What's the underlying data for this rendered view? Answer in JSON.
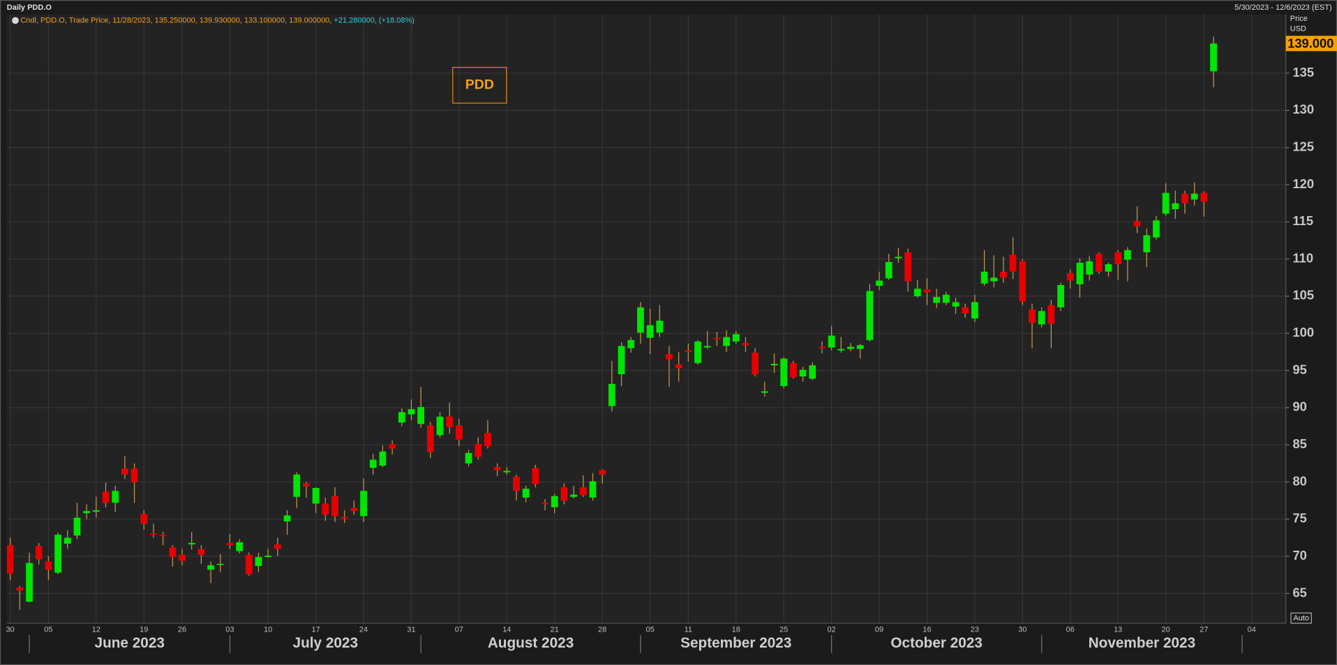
{
  "window_title": "Daily PDD.O",
  "date_range": "5/30/2023 - 12/6/2023 (EST)",
  "legend": {
    "text": "Cndl, PDD.O, Trade Price,  11/28/2023, 135.250000, 139.930000, 133.100000, 139.000000,",
    "change": "+21.280000, (+18.08%)"
  },
  "auto_button": "Auto",
  "chart_data": {
    "type": "candlestick",
    "title": "PDD",
    "y_axis_label": [
      "Price",
      "USD"
    ],
    "x": [
      "2023-05-30",
      "2023-05-31",
      "2023-06-01",
      "2023-06-02",
      "2023-06-05",
      "2023-06-06",
      "2023-06-07",
      "2023-06-08",
      "2023-06-09",
      "2023-06-12",
      "2023-06-13",
      "2023-06-14",
      "2023-06-15",
      "2023-06-16",
      "2023-06-20",
      "2023-06-21",
      "2023-06-22",
      "2023-06-23",
      "2023-06-26",
      "2023-06-27",
      "2023-06-28",
      "2023-06-29",
      "2023-06-30",
      "2023-07-03",
      "2023-07-05",
      "2023-07-06",
      "2023-07-07",
      "2023-07-10",
      "2023-07-11",
      "2023-07-12",
      "2023-07-13",
      "2023-07-14",
      "2023-07-17",
      "2023-07-18",
      "2023-07-19",
      "2023-07-20",
      "2023-07-21",
      "2023-07-24",
      "2023-07-25",
      "2023-07-26",
      "2023-07-27",
      "2023-07-28",
      "2023-07-31",
      "2023-08-01",
      "2023-08-02",
      "2023-08-03",
      "2023-08-04",
      "2023-08-07",
      "2023-08-08",
      "2023-08-09",
      "2023-08-10",
      "2023-08-11",
      "2023-08-14",
      "2023-08-15",
      "2023-08-16",
      "2023-08-17",
      "2023-08-18",
      "2023-08-21",
      "2023-08-22",
      "2023-08-23",
      "2023-08-24",
      "2023-08-25",
      "2023-08-28",
      "2023-08-29",
      "2023-08-30",
      "2023-08-31",
      "2023-09-01",
      "2023-09-05",
      "2023-09-06",
      "2023-09-07",
      "2023-09-08",
      "2023-09-11",
      "2023-09-12",
      "2023-09-13",
      "2023-09-14",
      "2023-09-15",
      "2023-09-18",
      "2023-09-19",
      "2023-09-20",
      "2023-09-21",
      "2023-09-22",
      "2023-09-25",
      "2023-09-26",
      "2023-09-27",
      "2023-09-28",
      "2023-09-29",
      "2023-10-02",
      "2023-10-03",
      "2023-10-04",
      "2023-10-05",
      "2023-10-06",
      "2023-10-09",
      "2023-10-10",
      "2023-10-11",
      "2023-10-12",
      "2023-10-13",
      "2023-10-16",
      "2023-10-17",
      "2023-10-18",
      "2023-10-19",
      "2023-10-20",
      "2023-10-23",
      "2023-10-24",
      "2023-10-25",
      "2023-10-26",
      "2023-10-27",
      "2023-10-30",
      "2023-10-31",
      "2023-11-01",
      "2023-11-02",
      "2023-11-03",
      "2023-11-06",
      "2023-11-07",
      "2023-11-08",
      "2023-11-09",
      "2023-11-10",
      "2023-11-13",
      "2023-11-14",
      "2023-11-15",
      "2023-11-16",
      "2023-11-17",
      "2023-11-20",
      "2023-11-21",
      "2023-11-22",
      "2023-11-24",
      "2023-11-27",
      "2023-11-28"
    ],
    "open": [
      71.5,
      65.8,
      63.9,
      71.4,
      69.3,
      67.8,
      71.7,
      72.8,
      75.8,
      76,
      78.7,
      77.2,
      81.8,
      81.8,
      75.7,
      73.1,
      72.9,
      71.2,
      70.2,
      71.6,
      71,
      68.2,
      68.9,
      71.8,
      70.7,
      70.2,
      68.7,
      69.9,
      71.6,
      74.7,
      78,
      79.8,
      77.1,
      77.1,
      78.1,
      75.3,
      76.5,
      75.4,
      81.9,
      82.2,
      85.1,
      88,
      89.1,
      87.8,
      87.6,
      86.3,
      88.8,
      87.6,
      82.5,
      85.1,
      86.6,
      82,
      81.3,
      80.7,
      77.9,
      81.9,
      77.2,
      76.6,
      79.3,
      78,
      79.3,
      77.9,
      81.6,
      90.2,
      94.5,
      98,
      100.1,
      99.4,
      100.1,
      97.2,
      95.8,
      97.7,
      96,
      98.1,
      99.4,
      98.3,
      98.9,
      98.7,
      97.4,
      92,
      95.7,
      92.9,
      96,
      94.2,
      93.9,
      98.2,
      98.1,
      97.7,
      97.9,
      97.9,
      99.1,
      106.4,
      107.4,
      110.1,
      110.9,
      105,
      105.9,
      104.1,
      104.1,
      103.6,
      103.5,
      102,
      106.7,
      107,
      108.3,
      110.6,
      109.7,
      103.2,
      101.2,
      103.8,
      103.5,
      108.1,
      106.6,
      107.9,
      110.7,
      108.3,
      110.9,
      109.9,
      115.1,
      110.9,
      112.9,
      116.1,
      116.7,
      118.8,
      118,
      118.9,
      135.25
    ],
    "high": [
      72.5,
      66,
      70.5,
      71.8,
      70,
      73.2,
      73.5,
      77.2,
      77,
      78,
      79.9,
      79.5,
      83.5,
      82.5,
      76.2,
      74.4,
      73.3,
      71.5,
      71,
      73.3,
      71.5,
      69.3,
      70.3,
      73,
      72.3,
      70.5,
      70.5,
      71,
      72.5,
      76.2,
      81.3,
      80,
      79.3,
      77.9,
      79.3,
      76.2,
      77.5,
      80.5,
      83.8,
      84.9,
      85.6,
      89.9,
      91.1,
      92.8,
      88.1,
      89.4,
      90.7,
      88.5,
      84.3,
      86,
      88.3,
      82.5,
      82,
      81,
      79.5,
      82.3,
      77.7,
      78.4,
      79.8,
      79.5,
      80.9,
      81.2,
      81.7,
      96.3,
      98.8,
      99.5,
      104.2,
      103.3,
      103.8,
      98.3,
      97.5,
      98.6,
      99.1,
      100.3,
      100.2,
      100.4,
      100.3,
      99.5,
      98,
      93.5,
      97.3,
      96.8,
      96.3,
      95.5,
      96.1,
      98.9,
      101,
      99.5,
      98.7,
      98.6,
      106.6,
      108.3,
      110.7,
      111.5,
      111.4,
      107.2,
      107.4,
      106,
      105.6,
      104.8,
      104,
      105.2,
      111.2,
      110.5,
      110.3,
      112.9,
      110,
      104,
      103.5,
      104.5,
      106.8,
      108.6,
      110.1,
      110.4,
      110.9,
      109.5,
      111.2,
      111.6,
      117.1,
      114.1,
      115.8,
      120.2,
      119.2,
      119.2,
      120.3,
      119.1,
      139.93
    ],
    "low": [
      66.8,
      62.8,
      63.8,
      68.9,
      66.8,
      67.6,
      71,
      72.3,
      75,
      75.2,
      76.6,
      76,
      80.4,
      77.2,
      73.6,
      72.5,
      71.5,
      68.6,
      68.8,
      70.9,
      69,
      66.4,
      67.9,
      71,
      70.4,
      67.4,
      67.9,
      69.8,
      70,
      72.9,
      76.5,
      77.9,
      75.8,
      74.8,
      74.6,
      74.5,
      75.6,
      74.6,
      81,
      82,
      83.7,
      87.5,
      88.3,
      87.3,
      83.2,
      86,
      86.5,
      84.8,
      82.1,
      83,
      84.5,
      80.8,
      81,
      77.5,
      77.3,
      79.3,
      76.2,
      75.8,
      77,
      77.8,
      78,
      77.5,
      79.8,
      89.5,
      92.9,
      97.4,
      98.6,
      97.2,
      99.5,
      92.8,
      93.5,
      96.2,
      95.8,
      97.9,
      98.3,
      97.5,
      98.6,
      97.5,
      94.2,
      91.5,
      94.7,
      92.6,
      93.9,
      93.5,
      93.7,
      97.3,
      97.7,
      97.4,
      97.6,
      96.6,
      98.9,
      105.8,
      107.2,
      109.5,
      105.6,
      104.8,
      103.8,
      103.4,
      103.8,
      102.6,
      102.1,
      101.5,
      106.4,
      106.2,
      106.8,
      107.3,
      103.8,
      98,
      100.8,
      98,
      103,
      106,
      104.8,
      107.1,
      108,
      107.6,
      107.2,
      107,
      113.5,
      108.9,
      112.6,
      115.8,
      115.4,
      116.1,
      117.2,
      115.7,
      133.1
    ],
    "close": [
      67.7,
      65.4,
      69.1,
      69.6,
      68.2,
      72.9,
      72.5,
      75.2,
      76.1,
      76.2,
      77.2,
      78.8,
      81,
      80,
      74.4,
      72.9,
      72.7,
      69.9,
      69.4,
      71.8,
      70.2,
      68.8,
      69,
      71.5,
      71.9,
      67.6,
      69.9,
      70.1,
      71,
      75.5,
      81,
      79.4,
      79.2,
      75.6,
      75.4,
      75.1,
      76.1,
      78.8,
      83,
      84.1,
      84.5,
      89.4,
      89.8,
      90.1,
      84,
      88.8,
      87.4,
      85.7,
      83.9,
      83.4,
      84.8,
      81.6,
      81.5,
      78.8,
      79.1,
      79.7,
      77,
      78.1,
      77.5,
      78.3,
      78.2,
      80.1,
      81,
      93.2,
      98.3,
      99.1,
      103.5,
      101.1,
      101.7,
      96.5,
      95.3,
      97.5,
      98.9,
      98.3,
      99.2,
      99.5,
      99.9,
      98.4,
      94.5,
      92.2,
      95.9,
      96.6,
      94.1,
      95.1,
      95.7,
      98,
      99.7,
      97.9,
      98.2,
      98.4,
      105.7,
      107.1,
      109.6,
      110.3,
      107,
      106,
      105.5,
      104.9,
      105.2,
      104.2,
      102.7,
      104.2,
      108.3,
      107.5,
      107.5,
      108.3,
      104.3,
      101.4,
      103,
      101.3,
      106.5,
      107.1,
      109.5,
      109.7,
      108.3,
      109.3,
      109.3,
      111.2,
      114.4,
      113.2,
      115.2,
      118.9,
      117.5,
      117.5,
      118.8,
      117.72,
      139
    ],
    "up_color": "#00e600",
    "down_color": "#e60000",
    "wick_color": "#c99a4e",
    "ylim": [
      61,
      142.9
    ],
    "yticks": [
      65,
      70,
      75,
      80,
      85,
      90,
      95,
      100,
      105,
      110,
      115,
      120,
      125,
      130,
      135
    ],
    "grid": true,
    "last_price": {
      "value": 139,
      "label": "139.000"
    },
    "xticks": [
      {
        "value": "2023-05-30",
        "label": "30"
      },
      {
        "value": "2023-06-05",
        "label": "05"
      },
      {
        "value": "2023-06-12",
        "label": "12"
      },
      {
        "value": "2023-06-19",
        "label": "19"
      },
      {
        "value": "2023-06-26",
        "label": "26"
      },
      {
        "value": "2023-07-03",
        "label": "03"
      },
      {
        "value": "2023-07-10",
        "label": "10"
      },
      {
        "value": "2023-07-17",
        "label": "17"
      },
      {
        "value": "2023-07-24",
        "label": "24"
      },
      {
        "value": "2023-07-31",
        "label": "31"
      },
      {
        "value": "2023-08-07",
        "label": "07"
      },
      {
        "value": "2023-08-14",
        "label": "14"
      },
      {
        "value": "2023-08-21",
        "label": "21"
      },
      {
        "value": "2023-08-28",
        "label": "28"
      },
      {
        "value": "2023-09-05",
        "label": "05"
      },
      {
        "value": "2023-09-11",
        "label": "11"
      },
      {
        "value": "2023-09-18",
        "label": "18"
      },
      {
        "value": "2023-09-25",
        "label": "25"
      },
      {
        "value": "2023-10-02",
        "label": "02"
      },
      {
        "value": "2023-10-09",
        "label": "09"
      },
      {
        "value": "2023-10-16",
        "label": "16"
      },
      {
        "value": "2023-10-23",
        "label": "23"
      },
      {
        "value": "2023-10-30",
        "label": "30"
      },
      {
        "value": "2023-11-06",
        "label": "06"
      },
      {
        "value": "2023-11-13",
        "label": "13"
      },
      {
        "value": "2023-11-20",
        "label": "20"
      },
      {
        "value": "2023-11-27",
        "label": "27"
      },
      {
        "value": "2023-12-04",
        "label": "04"
      }
    ],
    "month_labels": [
      {
        "value": "2023-06-01",
        "label": "June 2023"
      },
      {
        "value": "2023-07-01",
        "label": "July 2023"
      },
      {
        "value": "2023-08-01",
        "label": "August 2023"
      },
      {
        "value": "2023-09-01",
        "label": "September 2023"
      },
      {
        "value": "2023-10-01",
        "label": "October 2023"
      },
      {
        "value": "2023-11-01",
        "label": "November 2023"
      }
    ]
  }
}
